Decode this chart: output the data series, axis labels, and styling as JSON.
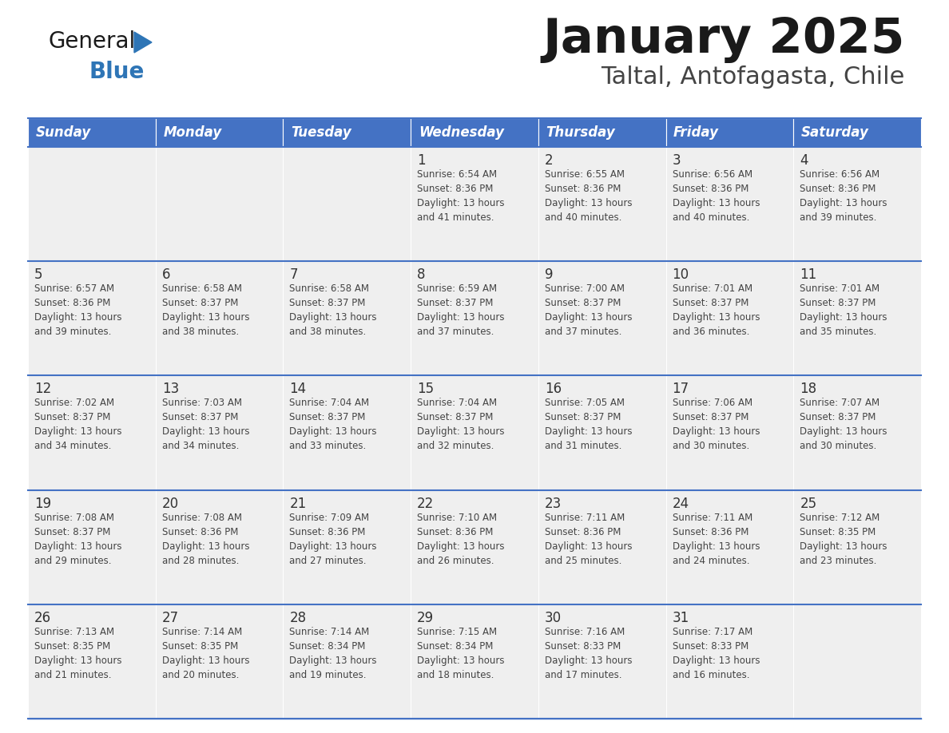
{
  "title": "January 2025",
  "subtitle": "Taltal, Antofagasta, Chile",
  "header_bg": "#4472C4",
  "header_text_color": "#FFFFFF",
  "days_of_week": [
    "Sunday",
    "Monday",
    "Tuesday",
    "Wednesday",
    "Thursday",
    "Friday",
    "Saturday"
  ],
  "weeks": [
    [
      {
        "day": "",
        "info": ""
      },
      {
        "day": "",
        "info": ""
      },
      {
        "day": "",
        "info": ""
      },
      {
        "day": "1",
        "info": "Sunrise: 6:54 AM\nSunset: 8:36 PM\nDaylight: 13 hours\nand 41 minutes."
      },
      {
        "day": "2",
        "info": "Sunrise: 6:55 AM\nSunset: 8:36 PM\nDaylight: 13 hours\nand 40 minutes."
      },
      {
        "day": "3",
        "info": "Sunrise: 6:56 AM\nSunset: 8:36 PM\nDaylight: 13 hours\nand 40 minutes."
      },
      {
        "day": "4",
        "info": "Sunrise: 6:56 AM\nSunset: 8:36 PM\nDaylight: 13 hours\nand 39 minutes."
      }
    ],
    [
      {
        "day": "5",
        "info": "Sunrise: 6:57 AM\nSunset: 8:36 PM\nDaylight: 13 hours\nand 39 minutes."
      },
      {
        "day": "6",
        "info": "Sunrise: 6:58 AM\nSunset: 8:37 PM\nDaylight: 13 hours\nand 38 minutes."
      },
      {
        "day": "7",
        "info": "Sunrise: 6:58 AM\nSunset: 8:37 PM\nDaylight: 13 hours\nand 38 minutes."
      },
      {
        "day": "8",
        "info": "Sunrise: 6:59 AM\nSunset: 8:37 PM\nDaylight: 13 hours\nand 37 minutes."
      },
      {
        "day": "9",
        "info": "Sunrise: 7:00 AM\nSunset: 8:37 PM\nDaylight: 13 hours\nand 37 minutes."
      },
      {
        "day": "10",
        "info": "Sunrise: 7:01 AM\nSunset: 8:37 PM\nDaylight: 13 hours\nand 36 minutes."
      },
      {
        "day": "11",
        "info": "Sunrise: 7:01 AM\nSunset: 8:37 PM\nDaylight: 13 hours\nand 35 minutes."
      }
    ],
    [
      {
        "day": "12",
        "info": "Sunrise: 7:02 AM\nSunset: 8:37 PM\nDaylight: 13 hours\nand 34 minutes."
      },
      {
        "day": "13",
        "info": "Sunrise: 7:03 AM\nSunset: 8:37 PM\nDaylight: 13 hours\nand 34 minutes."
      },
      {
        "day": "14",
        "info": "Sunrise: 7:04 AM\nSunset: 8:37 PM\nDaylight: 13 hours\nand 33 minutes."
      },
      {
        "day": "15",
        "info": "Sunrise: 7:04 AM\nSunset: 8:37 PM\nDaylight: 13 hours\nand 32 minutes."
      },
      {
        "day": "16",
        "info": "Sunrise: 7:05 AM\nSunset: 8:37 PM\nDaylight: 13 hours\nand 31 minutes."
      },
      {
        "day": "17",
        "info": "Sunrise: 7:06 AM\nSunset: 8:37 PM\nDaylight: 13 hours\nand 30 minutes."
      },
      {
        "day": "18",
        "info": "Sunrise: 7:07 AM\nSunset: 8:37 PM\nDaylight: 13 hours\nand 30 minutes."
      }
    ],
    [
      {
        "day": "19",
        "info": "Sunrise: 7:08 AM\nSunset: 8:37 PM\nDaylight: 13 hours\nand 29 minutes."
      },
      {
        "day": "20",
        "info": "Sunrise: 7:08 AM\nSunset: 8:36 PM\nDaylight: 13 hours\nand 28 minutes."
      },
      {
        "day": "21",
        "info": "Sunrise: 7:09 AM\nSunset: 8:36 PM\nDaylight: 13 hours\nand 27 minutes."
      },
      {
        "day": "22",
        "info": "Sunrise: 7:10 AM\nSunset: 8:36 PM\nDaylight: 13 hours\nand 26 minutes."
      },
      {
        "day": "23",
        "info": "Sunrise: 7:11 AM\nSunset: 8:36 PM\nDaylight: 13 hours\nand 25 minutes."
      },
      {
        "day": "24",
        "info": "Sunrise: 7:11 AM\nSunset: 8:36 PM\nDaylight: 13 hours\nand 24 minutes."
      },
      {
        "day": "25",
        "info": "Sunrise: 7:12 AM\nSunset: 8:35 PM\nDaylight: 13 hours\nand 23 minutes."
      }
    ],
    [
      {
        "day": "26",
        "info": "Sunrise: 7:13 AM\nSunset: 8:35 PM\nDaylight: 13 hours\nand 21 minutes."
      },
      {
        "day": "27",
        "info": "Sunrise: 7:14 AM\nSunset: 8:35 PM\nDaylight: 13 hours\nand 20 minutes."
      },
      {
        "day": "28",
        "info": "Sunrise: 7:14 AM\nSunset: 8:34 PM\nDaylight: 13 hours\nand 19 minutes."
      },
      {
        "day": "29",
        "info": "Sunrise: 7:15 AM\nSunset: 8:34 PM\nDaylight: 13 hours\nand 18 minutes."
      },
      {
        "day": "30",
        "info": "Sunrise: 7:16 AM\nSunset: 8:33 PM\nDaylight: 13 hours\nand 17 minutes."
      },
      {
        "day": "31",
        "info": "Sunrise: 7:17 AM\nSunset: 8:33 PM\nDaylight: 13 hours\nand 16 minutes."
      },
      {
        "day": "",
        "info": ""
      }
    ]
  ],
  "cell_bg": "#EFEFEF",
  "cell_border_color": "#4472C4",
  "day_number_color": "#333333",
  "info_text_color": "#444444",
  "logo_general_color": "#1a1a1a",
  "logo_blue_color": "#2E75B6",
  "title_color": "#1a1a1a",
  "subtitle_color": "#444444"
}
